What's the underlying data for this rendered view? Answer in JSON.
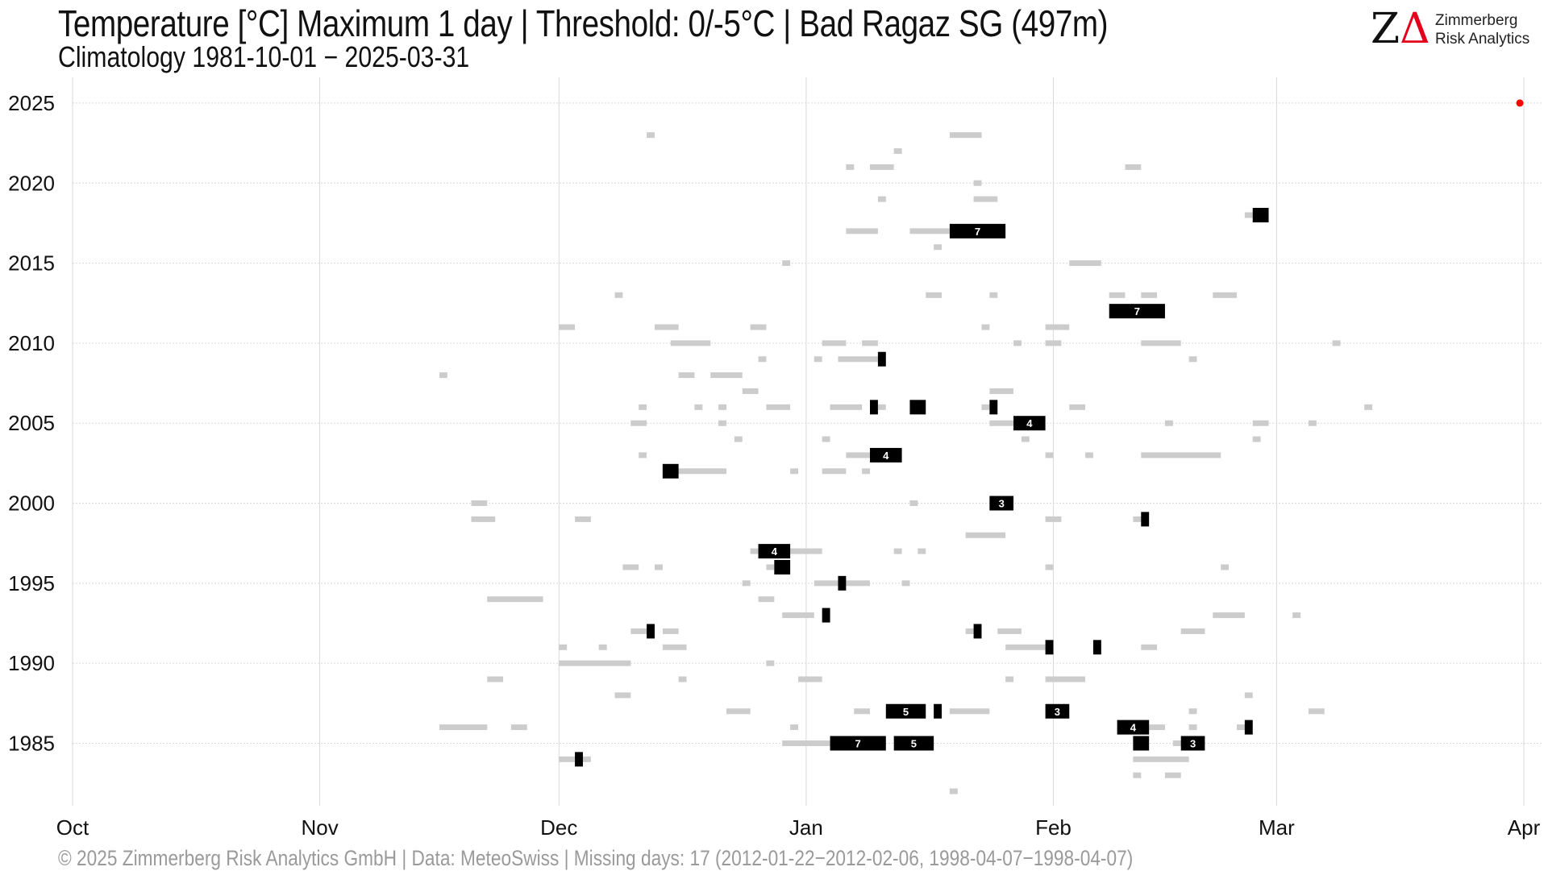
{
  "header": {
    "title": "Temperature [°C] Maximum 1 day | Threshold: 0/-5°C | Bad Ragaz  SG (497m)",
    "subtitle": "Climatology 1981-10-01 − 2025-03-31"
  },
  "logo": {
    "mark_z": "Z",
    "mark_delta": "Δ",
    "line1": "Zimmerberg",
    "line2": "Risk Analytics"
  },
  "footer": "©  2025 Zimmerberg Risk Analytics GmbH | Data: MeteoSwiss | Missing days: 17 (2012-01-22−2012-02-06, 1998-04-07−1998-04-07)",
  "colors": {
    "below_threshold": "#cccccc",
    "below_lower_threshold": "#000000",
    "current": "#ff0000",
    "grid": "#d9d9d9"
  },
  "chart_data": {
    "type": "timeline",
    "x_axis": {
      "unit": "day of season (0 = 1 Oct)",
      "range": [
        0,
        182
      ],
      "ticks": [
        {
          "day": 0,
          "label": "Oct"
        },
        {
          "day": 31,
          "label": "Nov"
        },
        {
          "day": 61,
          "label": "Dec"
        },
        {
          "day": 92,
          "label": "Jan"
        },
        {
          "day": 123,
          "label": "Feb"
        },
        {
          "day": 151,
          "label": "Mar"
        },
        {
          "day": 182,
          "label": "Apr"
        }
      ]
    },
    "y_axis": {
      "unit": "season year",
      "range": [
        1981.5,
        2025.5
      ],
      "ticks": [
        1985,
        1990,
        1995,
        2000,
        2005,
        2010,
        2015,
        2020,
        2025
      ]
    },
    "grid": true,
    "gray_runs": [
      {
        "year": 2023,
        "start": 72,
        "days": 1
      },
      {
        "year": 2023,
        "start": 110,
        "days": 4
      },
      {
        "year": 2022,
        "start": 103,
        "days": 1
      },
      {
        "year": 2021,
        "start": 97,
        "days": 1
      },
      {
        "year": 2021,
        "start": 100,
        "days": 3
      },
      {
        "year": 2021,
        "start": 132,
        "days": 2
      },
      {
        "year": 2020,
        "start": 113,
        "days": 1
      },
      {
        "year": 2019,
        "start": 101,
        "days": 1
      },
      {
        "year": 2019,
        "start": 113,
        "days": 3
      },
      {
        "year": 2018,
        "start": 147,
        "days": 1
      },
      {
        "year": 2017,
        "start": 97,
        "days": 4
      },
      {
        "year": 2017,
        "start": 105,
        "days": 5
      },
      {
        "year": 2016,
        "start": 108,
        "days": 1
      },
      {
        "year": 2015,
        "start": 89,
        "days": 1
      },
      {
        "year": 2015,
        "start": 125,
        "days": 4
      },
      {
        "year": 2013,
        "start": 68,
        "days": 1
      },
      {
        "year": 2013,
        "start": 107,
        "days": 2
      },
      {
        "year": 2013,
        "start": 115,
        "days": 1
      },
      {
        "year": 2013,
        "start": 130,
        "days": 2
      },
      {
        "year": 2013,
        "start": 134,
        "days": 2
      },
      {
        "year": 2013,
        "start": 143,
        "days": 3
      },
      {
        "year": 2011,
        "start": 61,
        "days": 2
      },
      {
        "year": 2011,
        "start": 73,
        "days": 3
      },
      {
        "year": 2011,
        "start": 85,
        "days": 2
      },
      {
        "year": 2011,
        "start": 114,
        "days": 1
      },
      {
        "year": 2011,
        "start": 122,
        "days": 3
      },
      {
        "year": 2010,
        "start": 75,
        "days": 5
      },
      {
        "year": 2010,
        "start": 94,
        "days": 3
      },
      {
        "year": 2010,
        "start": 99,
        "days": 2
      },
      {
        "year": 2010,
        "start": 118,
        "days": 1
      },
      {
        "year": 2010,
        "start": 122,
        "days": 2
      },
      {
        "year": 2010,
        "start": 134,
        "days": 5
      },
      {
        "year": 2010,
        "start": 158,
        "days": 1
      },
      {
        "year": 2009,
        "start": 86,
        "days": 1
      },
      {
        "year": 2009,
        "start": 93,
        "days": 1
      },
      {
        "year": 2009,
        "start": 96,
        "days": 5
      },
      {
        "year": 2009,
        "start": 140,
        "days": 1
      },
      {
        "year": 2008,
        "start": 46,
        "days": 1
      },
      {
        "year": 2008,
        "start": 76,
        "days": 2
      },
      {
        "year": 2008,
        "start": 80,
        "days": 4
      },
      {
        "year": 2007,
        "start": 84,
        "days": 2
      },
      {
        "year": 2007,
        "start": 115,
        "days": 3
      },
      {
        "year": 2006,
        "start": 71,
        "days": 1
      },
      {
        "year": 2006,
        "start": 78,
        "days": 1
      },
      {
        "year": 2006,
        "start": 81,
        "days": 1
      },
      {
        "year": 2006,
        "start": 87,
        "days": 3
      },
      {
        "year": 2006,
        "start": 95,
        "days": 4
      },
      {
        "year": 2006,
        "start": 101,
        "days": 1
      },
      {
        "year": 2006,
        "start": 114,
        "days": 1
      },
      {
        "year": 2006,
        "start": 125,
        "days": 2
      },
      {
        "year": 2006,
        "start": 162,
        "days": 1
      },
      {
        "year": 2005,
        "start": 70,
        "days": 2
      },
      {
        "year": 2005,
        "start": 81,
        "days": 1
      },
      {
        "year": 2005,
        "start": 115,
        "days": 3
      },
      {
        "year": 2005,
        "start": 137,
        "days": 1
      },
      {
        "year": 2005,
        "start": 148,
        "days": 2
      },
      {
        "year": 2005,
        "start": 155,
        "days": 1
      },
      {
        "year": 2004,
        "start": 83,
        "days": 1
      },
      {
        "year": 2004,
        "start": 94,
        "days": 1
      },
      {
        "year": 2004,
        "start": 119,
        "days": 1
      },
      {
        "year": 2004,
        "start": 148,
        "days": 1
      },
      {
        "year": 2003,
        "start": 71,
        "days": 1
      },
      {
        "year": 2003,
        "start": 97,
        "days": 3
      },
      {
        "year": 2003,
        "start": 122,
        "days": 1
      },
      {
        "year": 2003,
        "start": 127,
        "days": 1
      },
      {
        "year": 2003,
        "start": 134,
        "days": 10
      },
      {
        "year": 2002,
        "start": 76,
        "days": 6
      },
      {
        "year": 2002,
        "start": 90,
        "days": 1
      },
      {
        "year": 2002,
        "start": 94,
        "days": 3
      },
      {
        "year": 2002,
        "start": 99,
        "days": 1
      },
      {
        "year": 2000,
        "start": 50,
        "days": 2
      },
      {
        "year": 2000,
        "start": 105,
        "days": 1
      },
      {
        "year": 1999,
        "start": 50,
        "days": 3
      },
      {
        "year": 1999,
        "start": 63,
        "days": 2
      },
      {
        "year": 1999,
        "start": 122,
        "days": 2
      },
      {
        "year": 1999,
        "start": 133,
        "days": 1
      },
      {
        "year": 1998,
        "start": 112,
        "days": 5
      },
      {
        "year": 1997,
        "start": 85,
        "days": 1
      },
      {
        "year": 1997,
        "start": 90,
        "days": 4
      },
      {
        "year": 1997,
        "start": 103,
        "days": 1
      },
      {
        "year": 1997,
        "start": 106,
        "days": 1
      },
      {
        "year": 1996,
        "start": 69,
        "days": 2
      },
      {
        "year": 1996,
        "start": 73,
        "days": 1
      },
      {
        "year": 1996,
        "start": 87,
        "days": 1
      },
      {
        "year": 1996,
        "start": 122,
        "days": 1
      },
      {
        "year": 1996,
        "start": 144,
        "days": 1
      },
      {
        "year": 1995,
        "start": 84,
        "days": 1
      },
      {
        "year": 1995,
        "start": 93,
        "days": 3
      },
      {
        "year": 1995,
        "start": 97,
        "days": 3
      },
      {
        "year": 1995,
        "start": 104,
        "days": 1
      },
      {
        "year": 1994,
        "start": 52,
        "days": 7
      },
      {
        "year": 1994,
        "start": 86,
        "days": 2
      },
      {
        "year": 1993,
        "start": 89,
        "days": 4
      },
      {
        "year": 1993,
        "start": 143,
        "days": 4
      },
      {
        "year": 1993,
        "start": 153,
        "days": 1
      },
      {
        "year": 1992,
        "start": 70,
        "days": 2
      },
      {
        "year": 1992,
        "start": 74,
        "days": 2
      },
      {
        "year": 1992,
        "start": 112,
        "days": 1
      },
      {
        "year": 1992,
        "start": 116,
        "days": 3
      },
      {
        "year": 1992,
        "start": 139,
        "days": 3
      },
      {
        "year": 1991,
        "start": 61,
        "days": 1
      },
      {
        "year": 1991,
        "start": 66,
        "days": 1
      },
      {
        "year": 1991,
        "start": 74,
        "days": 3
      },
      {
        "year": 1991,
        "start": 117,
        "days": 5
      },
      {
        "year": 1991,
        "start": 128,
        "days": 1
      },
      {
        "year": 1991,
        "start": 134,
        "days": 2
      },
      {
        "year": 1990,
        "start": 61,
        "days": 9
      },
      {
        "year": 1990,
        "start": 87,
        "days": 1
      },
      {
        "year": 1989,
        "start": 52,
        "days": 2
      },
      {
        "year": 1989,
        "start": 76,
        "days": 1
      },
      {
        "year": 1989,
        "start": 91,
        "days": 3
      },
      {
        "year": 1989,
        "start": 117,
        "days": 1
      },
      {
        "year": 1989,
        "start": 122,
        "days": 5
      },
      {
        "year": 1988,
        "start": 68,
        "days": 2
      },
      {
        "year": 1988,
        "start": 147,
        "days": 1
      },
      {
        "year": 1987,
        "start": 82,
        "days": 3
      },
      {
        "year": 1987,
        "start": 98,
        "days": 2
      },
      {
        "year": 1987,
        "start": 110,
        "days": 5
      },
      {
        "year": 1987,
        "start": 140,
        "days": 1
      },
      {
        "year": 1987,
        "start": 155,
        "days": 2
      },
      {
        "year": 1986,
        "start": 46,
        "days": 6
      },
      {
        "year": 1986,
        "start": 55,
        "days": 2
      },
      {
        "year": 1986,
        "start": 90,
        "days": 1
      },
      {
        "year": 1986,
        "start": 135,
        "days": 2
      },
      {
        "year": 1986,
        "start": 140,
        "days": 1
      },
      {
        "year": 1986,
        "start": 146,
        "days": 2
      },
      {
        "year": 1985,
        "start": 89,
        "days": 6
      },
      {
        "year": 1985,
        "start": 138,
        "days": 3
      },
      {
        "year": 1984,
        "start": 61,
        "days": 4
      },
      {
        "year": 1984,
        "start": 133,
        "days": 7
      },
      {
        "year": 1983,
        "start": 133,
        "days": 1
      },
      {
        "year": 1983,
        "start": 137,
        "days": 2
      },
      {
        "year": 1982,
        "start": 110,
        "days": 1
      }
    ],
    "black_runs": [
      {
        "year": 2018,
        "start": 148,
        "days": 2,
        "label": ""
      },
      {
        "year": 2017,
        "start": 110,
        "days": 7,
        "label": "7"
      },
      {
        "year": 2012,
        "start": 130,
        "days": 7,
        "label": "7"
      },
      {
        "year": 2009,
        "start": 101,
        "days": 1,
        "label": ""
      },
      {
        "year": 2006,
        "start": 100,
        "days": 1,
        "label": ""
      },
      {
        "year": 2006,
        "start": 105,
        "days": 2,
        "label": ""
      },
      {
        "year": 2006,
        "start": 115,
        "days": 1,
        "label": ""
      },
      {
        "year": 2005,
        "start": 118,
        "days": 4,
        "label": "4"
      },
      {
        "year": 2003,
        "start": 100,
        "days": 4,
        "label": "4"
      },
      {
        "year": 2002,
        "start": 74,
        "days": 2,
        "label": ""
      },
      {
        "year": 2000,
        "start": 115,
        "days": 3,
        "label": "3"
      },
      {
        "year": 1999,
        "start": 134,
        "days": 1,
        "label": ""
      },
      {
        "year": 1997,
        "start": 86,
        "days": 4,
        "label": "4"
      },
      {
        "year": 1996,
        "start": 88,
        "days": 2,
        "label": ""
      },
      {
        "year": 1995,
        "start": 96,
        "days": 1,
        "label": ""
      },
      {
        "year": 1993,
        "start": 94,
        "days": 1,
        "label": ""
      },
      {
        "year": 1992,
        "start": 72,
        "days": 1,
        "label": ""
      },
      {
        "year": 1992,
        "start": 113,
        "days": 1,
        "label": ""
      },
      {
        "year": 1991,
        "start": 122,
        "days": 1,
        "label": ""
      },
      {
        "year": 1991,
        "start": 128,
        "days": 1,
        "label": ""
      },
      {
        "year": 1987,
        "start": 102,
        "days": 5,
        "label": "5"
      },
      {
        "year": 1987,
        "start": 108,
        "days": 1,
        "label": ""
      },
      {
        "year": 1987,
        "start": 122,
        "days": 3,
        "label": "3"
      },
      {
        "year": 1986,
        "start": 131,
        "days": 4,
        "label": "4"
      },
      {
        "year": 1986,
        "start": 147,
        "days": 1,
        "label": ""
      },
      {
        "year": 1985,
        "start": 95,
        "days": 7,
        "label": "7"
      },
      {
        "year": 1985,
        "start": 103,
        "days": 5,
        "label": "5"
      },
      {
        "year": 1985,
        "start": 133,
        "days": 2,
        "label": ""
      },
      {
        "year": 1985,
        "start": 139,
        "days": 3,
        "label": "3"
      },
      {
        "year": 1984,
        "start": 63,
        "days": 1,
        "label": ""
      }
    ],
    "current_point": {
      "year": 2025,
      "day": 181.5
    }
  }
}
